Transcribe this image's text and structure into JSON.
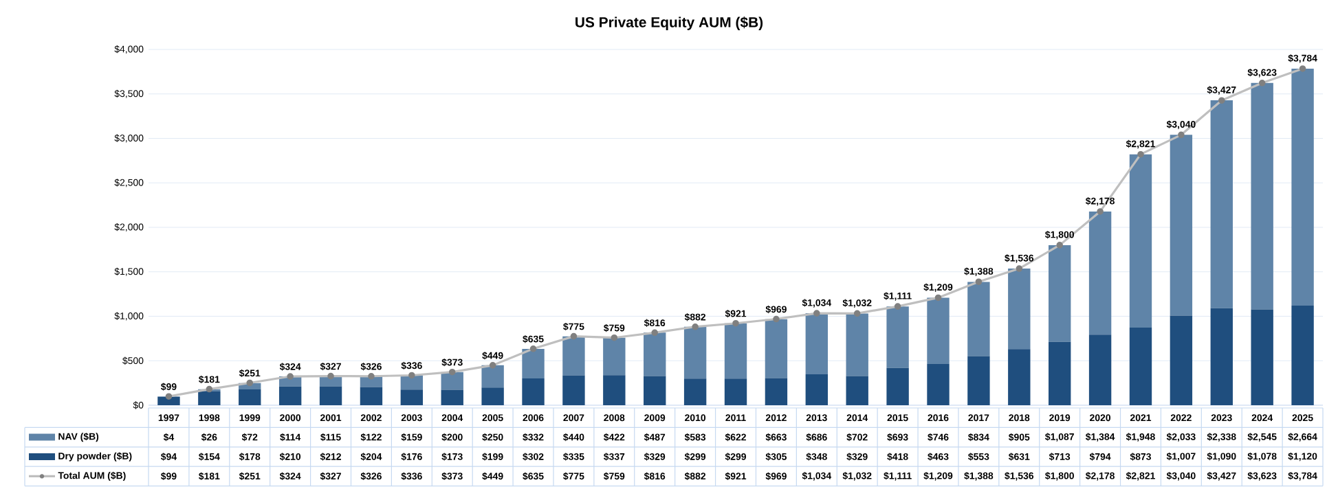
{
  "chart_data": {
    "type": "bar",
    "title": "US Private Equity AUM ($B)",
    "stacked": true,
    "grid": "y",
    "legend": "bottom",
    "categories": [
      "1997",
      "1998",
      "1999",
      "2000",
      "2001",
      "2002",
      "2003",
      "2004",
      "2005",
      "2006",
      "2007",
      "2008",
      "2009",
      "2010",
      "2011",
      "2012",
      "2013",
      "2014",
      "2015",
      "2016",
      "2017",
      "2018",
      "2019",
      "2020",
      "2021",
      "2022",
      "2023",
      "2024",
      "2025"
    ],
    "ylim": [
      0,
      4000
    ],
    "yticks": [
      {
        "value": 0,
        "label": "$0"
      },
      {
        "value": 500,
        "label": "$500"
      },
      {
        "value": 1000,
        "label": "$1,000"
      },
      {
        "value": 1500,
        "label": "$1,500"
      },
      {
        "value": 2000,
        "label": "$2,000"
      },
      {
        "value": 2500,
        "label": "$2,500"
      },
      {
        "value": 3000,
        "label": "$3,000"
      },
      {
        "value": 3500,
        "label": "$3,500"
      },
      {
        "value": 4000,
        "label": "$4,000"
      }
    ],
    "series": [
      {
        "name": "Dry powder ($B)",
        "color": "#1f4e7e",
        "values": [
          94,
          154,
          178,
          210,
          212,
          204,
          176,
          173,
          199,
          302,
          335,
          337,
          329,
          299,
          299,
          305,
          348,
          329,
          418,
          463,
          553,
          631,
          713,
          794,
          873,
          1007,
          1090,
          1078,
          1120
        ],
        "value_labels": [
          "$94",
          "$154",
          "$178",
          "$210",
          "$212",
          "$204",
          "$176",
          "$173",
          "$199",
          "$302",
          "$335",
          "$337",
          "$329",
          "$299",
          "$299",
          "$305",
          "$348",
          "$329",
          "$418",
          "$463",
          "$553",
          "$631",
          "$713",
          "$794",
          "$873",
          "$1,007",
          "$1,090",
          "$1,078",
          "$1,120"
        ]
      },
      {
        "name": "NAV ($B)",
        "color": "#5f84a8",
        "values": [
          4,
          26,
          72,
          114,
          115,
          122,
          159,
          200,
          250,
          332,
          440,
          422,
          487,
          583,
          622,
          663,
          686,
          702,
          693,
          746,
          834,
          905,
          1087,
          1384,
          1948,
          2033,
          2338,
          2545,
          2664
        ],
        "value_labels": [
          "$4",
          "$26",
          "$72",
          "$114",
          "$115",
          "$122",
          "$159",
          "$200",
          "$250",
          "$332",
          "$440",
          "$422",
          "$487",
          "$583",
          "$622",
          "$663",
          "$686",
          "$702",
          "$693",
          "$746",
          "$834",
          "$905",
          "$1,087",
          "$1,384",
          "$1,948",
          "$2,033",
          "$2,338",
          "$2,545",
          "$2,664"
        ]
      },
      {
        "name": "Total AUM ($B)",
        "type": "line",
        "color": "#bfbfbf",
        "marker": "circle",
        "values": [
          99,
          181,
          251,
          324,
          327,
          326,
          336,
          373,
          449,
          635,
          775,
          759,
          816,
          882,
          921,
          969,
          1034,
          1032,
          1111,
          1209,
          1388,
          1536,
          1800,
          2178,
          2821,
          3040,
          3427,
          3623,
          3784
        ],
        "value_labels": [
          "$99",
          "$181",
          "$251",
          "$324",
          "$327",
          "$326",
          "$336",
          "$373",
          "$449",
          "$635",
          "$775",
          "$759",
          "$816",
          "$882",
          "$921",
          "$969",
          "$1,034",
          "$1,032",
          "$1,111",
          "$1,209",
          "$1,388",
          "$1,536",
          "$1,800",
          "$2,178",
          "$2,821",
          "$3,040",
          "$3,427",
          "$3,623",
          "$3,784"
        ]
      }
    ]
  }
}
